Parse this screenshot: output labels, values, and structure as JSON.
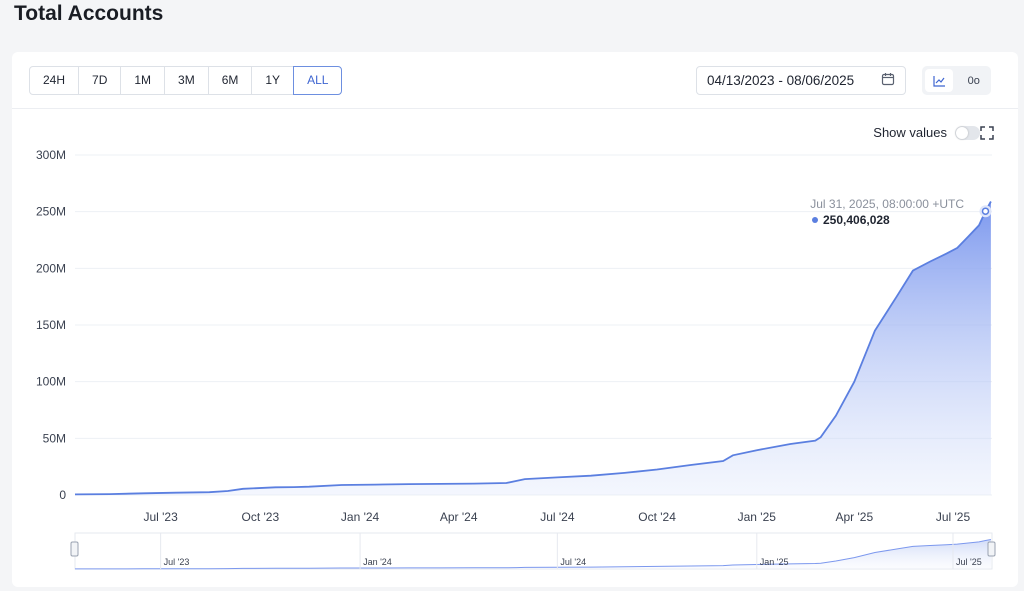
{
  "page": {
    "title": "Total Accounts"
  },
  "toolbar": {
    "ranges": [
      "24H",
      "7D",
      "1M",
      "3M",
      "6M",
      "1Y",
      "ALL"
    ],
    "active_range": "ALL",
    "date_range": "04/13/2023 - 08/06/2025",
    "show_values_label": "Show values",
    "show_values_on": false,
    "chart_view_label": "0o"
  },
  "tooltip": {
    "date": "Jul 31, 2025, 08:00:00 +UTC",
    "value": "250,406,028"
  },
  "colors": {
    "accent": "#6b8fe6",
    "line": "#5b7fe0",
    "active_text": "#3f66d1"
  },
  "navigator": {
    "labels": [
      "Jul '23",
      "Jan '24",
      "Jul '24",
      "Jan '25",
      "Jul '25"
    ]
  },
  "chart_data": {
    "type": "area",
    "title": "Total Accounts",
    "xlabel": "",
    "ylabel": "",
    "ylim": [
      0,
      300000000
    ],
    "yticks": [
      0,
      50000000,
      100000000,
      150000000,
      200000000,
      250000000,
      300000000
    ],
    "ytick_labels": [
      "0",
      "50M",
      "100M",
      "150M",
      "200M",
      "250M",
      "300M"
    ],
    "xticks": [
      "2023-07-01",
      "2023-10-01",
      "2024-01-01",
      "2024-04-01",
      "2024-07-01",
      "2024-10-01",
      "2025-01-01",
      "2025-04-01",
      "2025-07-01"
    ],
    "xtick_labels": [
      "Jul '23",
      "Oct '23",
      "Jan '24",
      "Apr '24",
      "Jul '24",
      "Oct '24",
      "Jan '25",
      "Apr '25",
      "Jul '25"
    ],
    "xlim": [
      "2023-04-13",
      "2025-08-06"
    ],
    "grid": true,
    "series": [
      {
        "x": [
          "2023-04-13",
          "2023-05-15",
          "2023-06-15",
          "2023-07-15",
          "2023-08-15",
          "2023-09-01",
          "2023-09-15",
          "2023-10-15",
          "2023-11-01",
          "2023-11-15",
          "2023-12-15",
          "2024-01-15",
          "2024-02-15",
          "2024-03-15",
          "2024-04-15",
          "2024-05-15",
          "2024-05-25",
          "2024-06-01",
          "2024-07-01",
          "2024-08-01",
          "2024-09-01",
          "2024-10-01",
          "2024-11-01",
          "2024-12-01",
          "2024-12-10",
          "2025-01-01",
          "2025-02-01",
          "2025-02-24",
          "2025-03-01",
          "2025-03-15",
          "2025-04-01",
          "2025-04-20",
          "2025-05-10",
          "2025-05-25",
          "2025-06-10",
          "2025-06-25",
          "2025-07-05",
          "2025-07-15",
          "2025-07-25",
          "2025-07-31",
          "2025-08-05"
        ],
        "values": [
          500000,
          800000,
          1500000,
          2000000,
          2500000,
          3500000,
          5500000,
          6800000,
          7000000,
          7300000,
          8800000,
          9200000,
          9600000,
          9800000,
          10100000,
          10600000,
          12500000,
          14000000,
          15500000,
          17000000,
          19500000,
          22500000,
          26500000,
          30000000,
          35000000,
          39500000,
          45000000,
          48000000,
          51000000,
          70000000,
          100000000,
          145000000,
          175000000,
          198000000,
          206000000,
          213000000,
          218000000,
          228000000,
          238000000,
          250406028,
          259000000
        ]
      }
    ]
  }
}
